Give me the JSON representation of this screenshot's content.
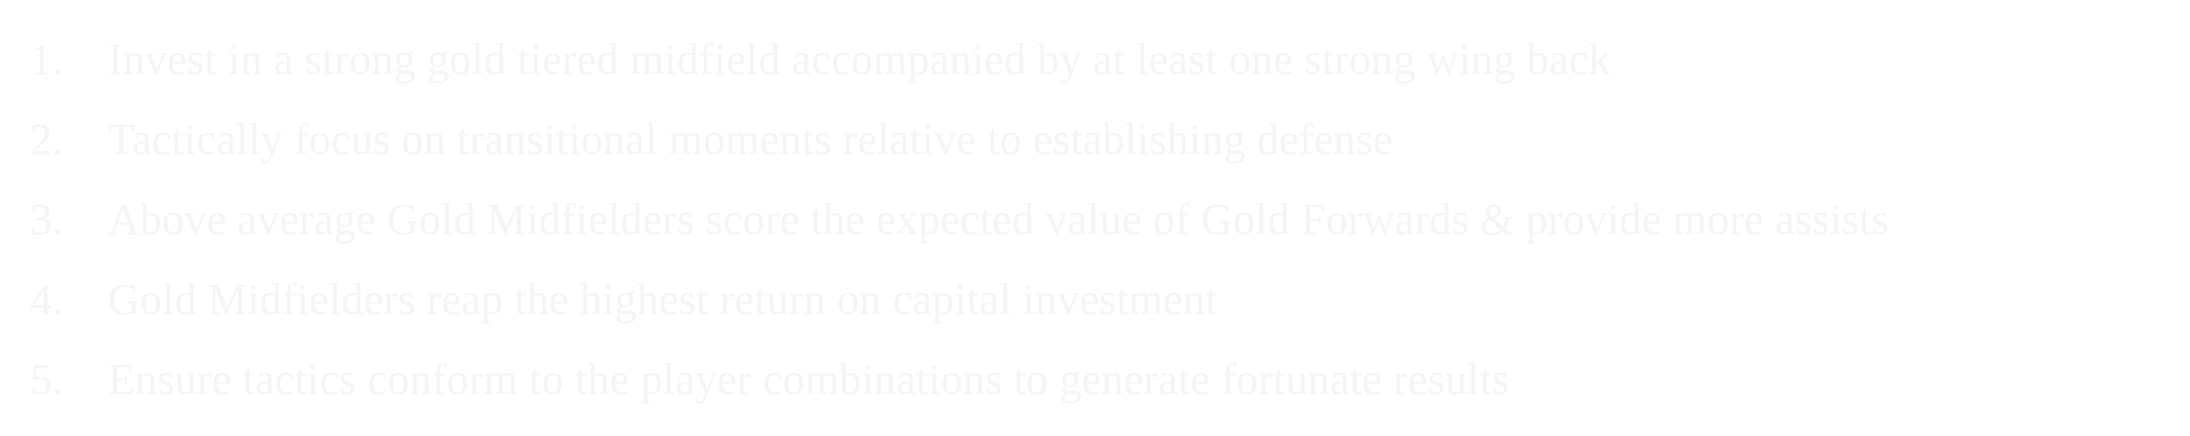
{
  "list": {
    "items": [
      {
        "number": "1.",
        "text": "Invest in a strong gold tiered midfield accompanied by at least one strong wing back"
      },
      {
        "number": "2.",
        "text": "Tactically focus on transitional moments relative to establishing defense"
      },
      {
        "number": "3.",
        "text": "Above average Gold Midfielders score the expected value of Gold Forwards & provide more assists"
      },
      {
        "number": "4.",
        "text": "Gold Midfielders reap the highest return on capital investment"
      },
      {
        "number": "5.",
        "text": "Ensure tactics conform to the player combinations to generate fortunate results"
      }
    ]
  },
  "colors": {
    "background": "#ffffff",
    "text": "#f5f5f5"
  }
}
